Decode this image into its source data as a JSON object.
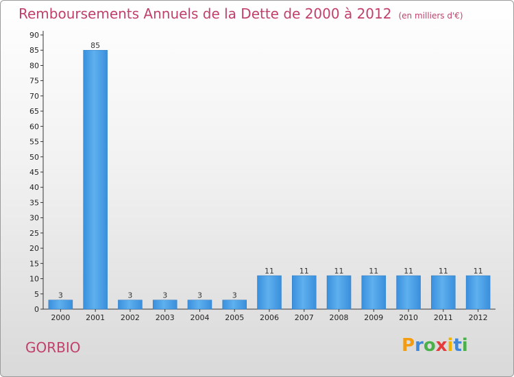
{
  "title": "Remboursements Annuels de la Dette de 2000 à 2012",
  "subtitle": "(en milliers d'€)",
  "commune": "GORBIO",
  "logo": {
    "letters": [
      "P",
      "r",
      "o",
      "x",
      "i",
      "t",
      "i"
    ],
    "colors": [
      "#f39c12",
      "#3f87d8",
      "#4ab04a",
      "#e53b3b",
      "#f0b400",
      "#3f87d8",
      "#4ab04a"
    ]
  },
  "colors": {
    "bar": "#3a8fdc",
    "bar_light": "#5eb0ee",
    "title": "#c0406a"
  },
  "chart_data": {
    "type": "bar",
    "title": "Remboursements Annuels de la Dette de 2000 à 2012",
    "categories": [
      "2000",
      "2001",
      "2002",
      "2003",
      "2004",
      "2005",
      "2006",
      "2007",
      "2008",
      "2009",
      "2010",
      "2011",
      "2012"
    ],
    "values": [
      3,
      85,
      3,
      3,
      3,
      3,
      11,
      11,
      11,
      11,
      11,
      11,
      11
    ],
    "ylim": [
      0,
      90
    ],
    "yticks": [
      0,
      5,
      10,
      15,
      20,
      25,
      30,
      35,
      40,
      45,
      50,
      55,
      60,
      65,
      70,
      75,
      80,
      85,
      90
    ],
    "xlabel": "",
    "ylabel": "",
    "grid": false,
    "data_labels": true
  }
}
